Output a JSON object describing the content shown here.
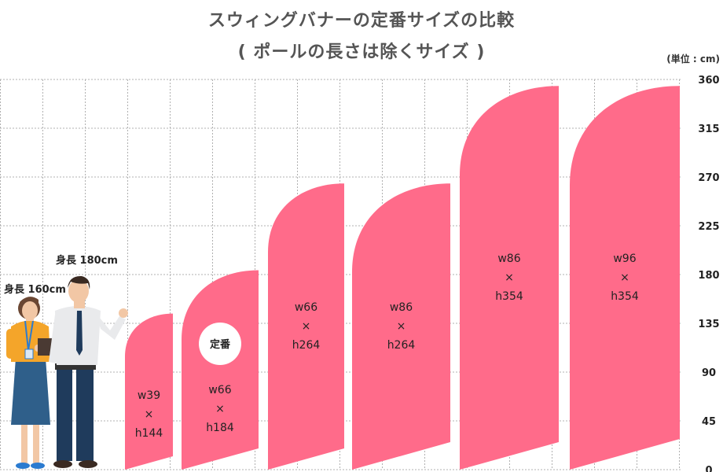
{
  "title": "スウィングバナーの定番サイズの比較",
  "subtitle": "( ポールの長さは除くサイズ )",
  "unit": "(単位 : cm)",
  "colors": {
    "banner": "#ff6b8a",
    "grid": "#b0b0b0",
    "text": "#333333"
  },
  "people": [
    {
      "label": "身長 160cm",
      "height": 160
    },
    {
      "label": "身長 180cm",
      "height": 180
    }
  ],
  "badge": "定番",
  "chart_data": {
    "type": "bar",
    "ylim": [
      0,
      360
    ],
    "yticks": [
      "0",
      "45",
      "90",
      "135",
      "180",
      "225",
      "270",
      "315",
      "360"
    ],
    "banners": [
      {
        "w_label": "w39",
        "h_label": "h144",
        "width": 39,
        "height": 144
      },
      {
        "w_label": "w66",
        "h_label": "h184",
        "width": 66,
        "height": 184,
        "featured": true
      },
      {
        "w_label": "w66",
        "h_label": "h264",
        "width": 66,
        "height": 264
      },
      {
        "w_label": "w86",
        "h_label": "h264",
        "width": 86,
        "height": 264
      },
      {
        "w_label": "w86",
        "h_label": "h354",
        "width": 86,
        "height": 354
      },
      {
        "w_label": "w96",
        "h_label": "h354",
        "width": 96,
        "height": 354
      }
    ],
    "times_symbol": "×"
  }
}
